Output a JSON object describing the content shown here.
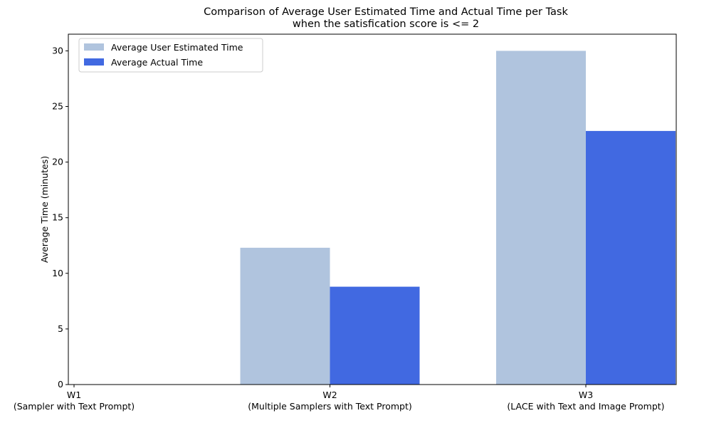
{
  "chart_data": {
    "type": "bar",
    "title": [
      "Comparison of Average User Estimated Time and Actual Time per Task",
      "when the satisfication score is <= 2"
    ],
    "xlabel": "",
    "ylabel": "Average Time (minutes)",
    "categories": [
      [
        "W1",
        "(Sampler with Text Prompt)"
      ],
      [
        "W2",
        "(Multiple Samplers with Text Prompt)"
      ],
      [
        "W3",
        "(LACE with Text and Image Prompt)"
      ]
    ],
    "series": [
      {
        "name": "Average User Estimated Time",
        "color": "#b0c4de",
        "values": [
          0,
          12.3,
          30.0
        ]
      },
      {
        "name": "Average Actual Time",
        "color": "#4169e1",
        "values": [
          0,
          8.8,
          22.8
        ]
      }
    ],
    "ylim": [
      0,
      31.5
    ],
    "yticks": [
      0,
      5,
      10,
      15,
      20,
      25,
      30
    ],
    "grid": false,
    "legend_position": "top-left"
  }
}
